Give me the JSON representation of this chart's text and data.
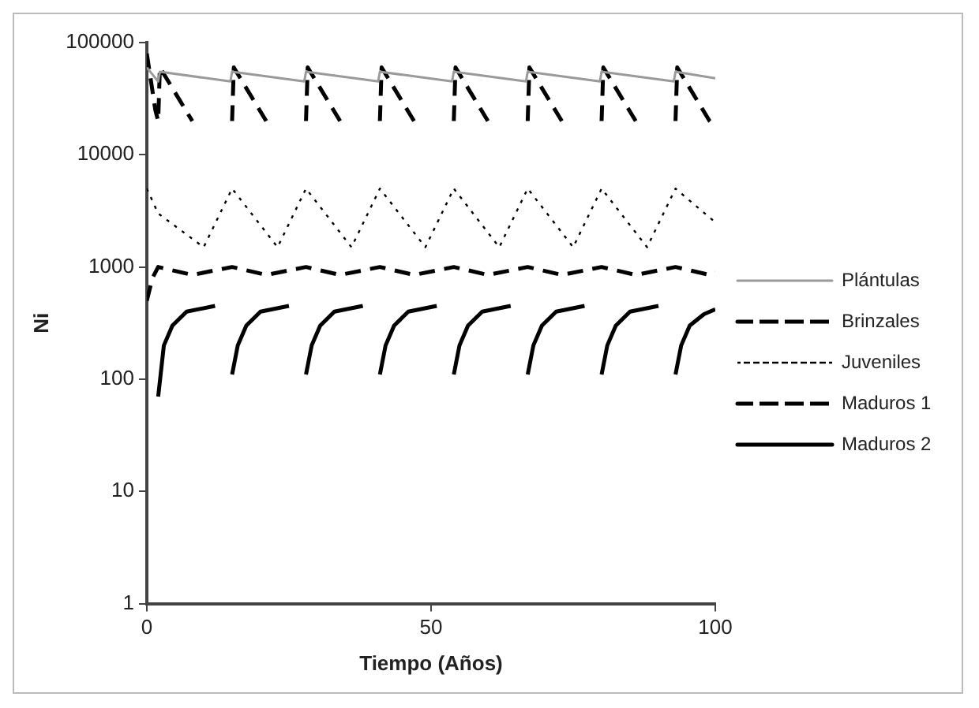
{
  "chart_data": {
    "type": "line",
    "xlabel": "Tiempo (Años)",
    "ylabel": "Ni",
    "log": "y",
    "xlim": [
      0,
      100
    ],
    "xticks": [
      0,
      50,
      100
    ],
    "ylim": [
      1,
      100000
    ],
    "yticks": [
      1,
      10,
      100,
      1000,
      10000,
      100000
    ],
    "grid": false,
    "legend": "right",
    "marker": "none",
    "series": [
      {
        "name": "Plántulas",
        "color": "#9a9a9a",
        "line_style": "solid",
        "x": [
          0,
          2,
          2.3,
          14.7,
          15,
          27.7,
          28,
          40.7,
          41,
          53.7,
          54,
          66.7,
          67,
          79.7,
          80,
          92.7,
          93,
          100
        ],
        "values": [
          60000,
          45000,
          55000,
          45000,
          55000,
          45000,
          55000,
          45000,
          55000,
          45000,
          55000,
          45000,
          55000,
          45000,
          55000,
          45000,
          55000,
          48000
        ]
      },
      {
        "name": "Brinzales",
        "color": "#000000",
        "line_style": "dashed",
        "x": [
          0,
          1.5,
          2,
          2.3,
          8,
          10,
          15,
          15.3,
          21,
          23,
          28,
          28.3,
          34,
          36,
          41,
          41.3,
          47,
          49,
          54,
          54.3,
          60,
          62,
          67,
          67.3,
          73,
          75,
          80,
          80.3,
          86,
          88,
          93,
          93.3,
          99,
          100
        ],
        "values": [
          80000,
          25000,
          20000,
          60000,
          20000,
          null,
          20000,
          60000,
          20000,
          null,
          20000,
          60000,
          20000,
          null,
          20000,
          60000,
          20000,
          null,
          20000,
          60000,
          20000,
          null,
          20000,
          60000,
          20000,
          null,
          20000,
          60000,
          20000,
          null,
          20000,
          60000,
          20000,
          18000
        ]
      },
      {
        "name": "Juveniles",
        "color": "#000000",
        "line_style": "dotted",
        "x": [
          0,
          2,
          10,
          15,
          23,
          28,
          36,
          41,
          49,
          54,
          62,
          67,
          75,
          80,
          88,
          93,
          100
        ],
        "values": [
          5000,
          3000,
          1500,
          5000,
          1500,
          5000,
          1500,
          5000,
          1500,
          5000,
          1500,
          5000,
          1500,
          5000,
          1500,
          5000,
          2500
        ]
      },
      {
        "name": "Maduros 1",
        "color": "#000000",
        "line_style": "dashed",
        "x": [
          0,
          1,
          2,
          8,
          15,
          21,
          28,
          34,
          41,
          47,
          54,
          60,
          67,
          73,
          80,
          86,
          93,
          99,
          100
        ],
        "values": [
          500,
          800,
          1000,
          850,
          1000,
          850,
          1000,
          850,
          1000,
          850,
          1000,
          850,
          1000,
          850,
          1000,
          850,
          1000,
          850,
          900
        ]
      },
      {
        "name": "Maduros 2",
        "color": "#000000",
        "line_style": "solid",
        "x": [
          2,
          3,
          4.5,
          7,
          12,
          13,
          15,
          16,
          17.5,
          20,
          25,
          26,
          28,
          29,
          30.5,
          33,
          38,
          39,
          41,
          42,
          43.5,
          46,
          51,
          52,
          54,
          55,
          56.5,
          59,
          64,
          65,
          67,
          68,
          69.5,
          72,
          77,
          78,
          80,
          81,
          82.5,
          85,
          90,
          91,
          93,
          94,
          95.5,
          98,
          100
        ],
        "values": [
          70,
          200,
          300,
          400,
          450,
          null,
          110,
          200,
          300,
          400,
          450,
          null,
          110,
          200,
          300,
          400,
          450,
          null,
          110,
          200,
          300,
          400,
          450,
          null,
          110,
          200,
          300,
          400,
          450,
          null,
          110,
          200,
          300,
          400,
          450,
          null,
          110,
          200,
          300,
          400,
          450,
          null,
          110,
          200,
          300,
          380,
          420
        ]
      }
    ]
  }
}
